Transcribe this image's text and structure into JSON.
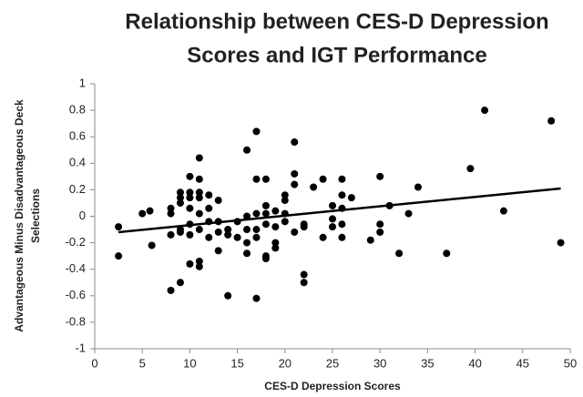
{
  "chart_data": {
    "type": "scatter",
    "title": [
      "Relationship between CES-D Depression",
      "Scores and IGT Performance"
    ],
    "x_label": "CES-D Depression Scores",
    "y_label": [
      "Advantageous Minus Disadvantageous Deck",
      "Selections"
    ],
    "color": "#000000",
    "xlim": [
      0,
      50
    ],
    "xticks": [
      0,
      5,
      10,
      15,
      20,
      25,
      30,
      35,
      40,
      45,
      50
    ],
    "ylim": [
      -1,
      1
    ],
    "yticks": [
      -1,
      -0.8,
      -0.6,
      -0.4,
      -0.2,
      0,
      0.2,
      0.4,
      0.6,
      0.8,
      1
    ],
    "grid": false,
    "x": [
      2.5,
      2.5,
      5,
      5.8,
      6,
      8,
      8,
      8,
      8,
      9,
      9,
      9,
      9,
      9,
      9,
      10,
      10,
      10,
      10,
      10,
      10,
      10,
      11,
      11,
      11,
      11,
      11,
      11,
      11,
      11,
      12,
      12,
      12,
      12,
      13,
      13,
      13,
      13,
      14,
      14,
      14,
      15,
      15,
      16,
      16,
      16,
      16,
      16,
      17,
      17,
      17,
      17,
      17,
      17,
      18,
      18,
      18,
      18,
      18,
      18,
      19,
      19,
      19,
      19,
      20,
      20,
      20,
      20,
      21,
      21,
      21,
      21,
      22,
      22,
      22,
      22,
      23,
      24,
      24,
      25,
      25,
      25,
      26,
      26,
      26,
      26,
      26,
      27,
      29,
      30,
      30,
      30,
      31,
      32,
      33,
      34,
      37,
      39.5,
      41,
      43,
      48,
      49
    ],
    "y": [
      -0.08,
      -0.3,
      0.02,
      0.04,
      -0.22,
      0.06,
      0.02,
      -0.14,
      -0.56,
      0.18,
      0.14,
      0.1,
      -0.1,
      -0.12,
      -0.5,
      0.3,
      0.18,
      0.14,
      0.06,
      -0.06,
      -0.14,
      -0.36,
      0.44,
      0.28,
      0.18,
      0.14,
      0.02,
      -0.1,
      -0.34,
      -0.38,
      0.16,
      0.06,
      -0.04,
      -0.16,
      0.12,
      -0.04,
      -0.12,
      -0.26,
      -0.1,
      -0.14,
      -0.6,
      -0.04,
      -0.16,
      0.5,
      0,
      -0.1,
      -0.2,
      -0.28,
      0.64,
      0.28,
      0.02,
      -0.1,
      -0.16,
      -0.62,
      0.28,
      0.08,
      0.02,
      -0.06,
      -0.3,
      -0.32,
      0.04,
      -0.08,
      -0.2,
      -0.24,
      0.16,
      0.12,
      0.02,
      -0.04,
      0.56,
      0.32,
      0.24,
      -0.12,
      -0.06,
      -0.08,
      -0.44,
      -0.5,
      0.22,
      0.28,
      -0.16,
      0.08,
      -0.02,
      -0.08,
      0.28,
      0.16,
      0.06,
      -0.06,
      -0.16,
      0.14,
      -0.18,
      0.3,
      -0.06,
      -0.12,
      0.08,
      -0.28,
      0.02,
      0.22,
      -0.28,
      0.36,
      0.8,
      0.04,
      0.72,
      -0.2
    ],
    "trendline": {
      "x": [
        2.5,
        49
      ],
      "y": [
        -0.12,
        0.21
      ]
    }
  }
}
